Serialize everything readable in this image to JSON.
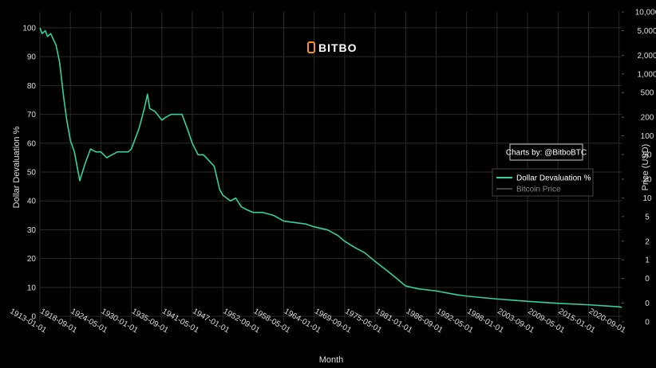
{
  "chart_data": {
    "type": "line",
    "logo": "BITBO",
    "annotation": "Charts by: @BitboBTC",
    "xlabel": "Month",
    "ylabel": "Dollar Devaluation %",
    "y2label": "Price (USD)",
    "x": [
      "1913-01-01",
      "1913-06-01",
      "1914-01-01",
      "1914-06-01",
      "1915-01-01",
      "1916-01-01",
      "1916-09-01",
      "1917-06-01",
      "1918-01-01",
      "1918-09-01",
      "1919-06-01",
      "1920-06-01",
      "1921-06-01",
      "1922-06-01",
      "1923-06-01",
      "1924-05-01",
      "1925-06-01",
      "1926-06-01",
      "1927-06-01",
      "1928-06-01",
      "1929-06-01",
      "1930-01-01",
      "1931-06-01",
      "1932-06-01",
      "1933-01-01",
      "1933-06-01",
      "1934-06-01",
      "1935-09-01",
      "1936-06-01",
      "1937-06-01",
      "1938-06-01",
      "1939-06-01",
      "1940-06-01",
      "1941-05-01",
      "1942-06-01",
      "1943-06-01",
      "1944-06-01",
      "1945-06-01",
      "1946-06-01",
      "1947-01-01",
      "1948-06-01",
      "1949-06-01",
      "1950-06-01",
      "1951-06-01",
      "1952-09-01",
      "1954-06-01",
      "1956-06-01",
      "1958-05-01",
      "1960-06-01",
      "1962-06-01",
      "1964-01-01",
      "1966-06-01",
      "1968-06-01",
      "1969-09-01",
      "1971-06-01",
      "1973-06-01",
      "1975-05-01",
      "1977-06-01",
      "1979-06-01",
      "1981-01-01",
      "1983-06-01",
      "1986-09-01",
      "1990-06-01",
      "1992-05-01",
      "1998-01-01",
      "2003-09-01",
      "2009-05-01",
      "2015-01-01",
      "2020-09-01",
      "2021-03-01"
    ],
    "series": [
      {
        "name": "Dollar Devaluation %",
        "color": "#34d399",
        "visible": true,
        "values": [
          100,
          98,
          99,
          97,
          98,
          94,
          88,
          76,
          68,
          61,
          57,
          47,
          53,
          58,
          57,
          57,
          55,
          56,
          57,
          57,
          57,
          58,
          65,
          72,
          77,
          72,
          71,
          68,
          69,
          70,
          70,
          70,
          65,
          60,
          56,
          56,
          54,
          52,
          44,
          42,
          40,
          41,
          38,
          37,
          36,
          36,
          35,
          33,
          32.5,
          32,
          31,
          30,
          28,
          26,
          24,
          22,
          19,
          16,
          13,
          10.5,
          9.5,
          8.8,
          7.5,
          7,
          6,
          5.2,
          4.5,
          4,
          3.3,
          3.1
        ]
      },
      {
        "name": "Bitcoin Price",
        "color": "#888888",
        "visible": false,
        "axis": "y2",
        "values": [
          null,
          null,
          null,
          null,
          null,
          null,
          null,
          null,
          null,
          null,
          null,
          null,
          null,
          null,
          null,
          null,
          null,
          null,
          null,
          null,
          null,
          null,
          null,
          null,
          null,
          null,
          null,
          null,
          null,
          null,
          null,
          null,
          null,
          null,
          null,
          null,
          null,
          null,
          null,
          null,
          null,
          null,
          null,
          null,
          null,
          null,
          null,
          null,
          null,
          null,
          null,
          null,
          null,
          null,
          null,
          null,
          null,
          null,
          null,
          null,
          null,
          null,
          null,
          null,
          null,
          null,
          null,
          null,
          null,
          null
        ]
      }
    ],
    "xlim": [
      "1913-01-01",
      "2021-03-01"
    ],
    "xticks": [
      "1913-01-01",
      "1918-09-01",
      "1924-05-01",
      "1930-01-01",
      "1935-09-01",
      "1941-05-01",
      "1947-01-01",
      "1952-09-01",
      "1958-05-01",
      "1964-01-01",
      "1969-09-01",
      "1975-05-01",
      "1981-01-01",
      "1986-09-01",
      "1992-05-01",
      "1998-01-01",
      "2003-09-01",
      "2009-05-01",
      "2015-01-01",
      "2020-09-01"
    ],
    "ylim": [
      -1.9,
      105.5
    ],
    "yticks": [
      0,
      10,
      20,
      30,
      40,
      50,
      60,
      70,
      80,
      90,
      100
    ],
    "y2lim": [
      0.1,
      10000
    ],
    "y2scale": "log",
    "y2ticks": [
      {
        "value": 0.1,
        "label": "0"
      },
      {
        "value": 0.2,
        "label": "0"
      },
      {
        "value": 0.5,
        "label": "0"
      },
      1,
      2,
      5,
      10,
      20,
      50,
      100,
      200,
      500,
      {
        "value": 1000,
        "label": "1,000"
      },
      {
        "value": 2000,
        "label": "2,000"
      },
      {
        "value": 5000,
        "label": "5,000"
      },
      {
        "value": 10000,
        "label": "10,000"
      }
    ],
    "grid": true,
    "legend": "right"
  }
}
